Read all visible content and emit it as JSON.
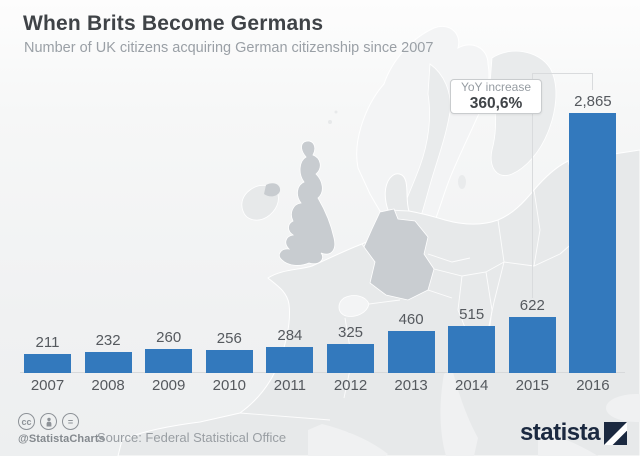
{
  "header": {
    "title": "When Brits Become Germans",
    "subtitle": "Number of UK citizens acquiring German citizenship since 2007"
  },
  "chart_data": {
    "type": "bar",
    "categories": [
      "2007",
      "2008",
      "2009",
      "2010",
      "2011",
      "2012",
      "2013",
      "2014",
      "2015",
      "2016"
    ],
    "values": [
      211,
      232,
      260,
      256,
      284,
      325,
      460,
      515,
      622,
      2865
    ],
    "value_labels": [
      "211",
      "232",
      "260",
      "256",
      "284",
      "325",
      "460",
      "515",
      "622",
      "2,865"
    ],
    "title": "When Brits Become Germans",
    "xlabel": "",
    "ylabel": "",
    "ylim": [
      0,
      2900
    ],
    "grid": false,
    "legend": false,
    "bar_color": "#3379bd"
  },
  "annotation": {
    "label": "YoY increase",
    "value": "360,6%"
  },
  "footer": {
    "license_icons": [
      "cc-icon",
      "attribution-icon",
      "equal-icon"
    ],
    "cc_glyph": "cc",
    "equal_glyph": "=",
    "handle": "@StatistaCharts",
    "source": "Source: Federal Statistical Office",
    "brand": "statista"
  },
  "colors": {
    "bar": "#3379bd",
    "highlighted_countries": "#c8ccd0",
    "land": "#e7e9ea",
    "brand_navy": "#1b2940",
    "text_dark": "#3f4347",
    "text_muted": "#9aa0a6"
  }
}
